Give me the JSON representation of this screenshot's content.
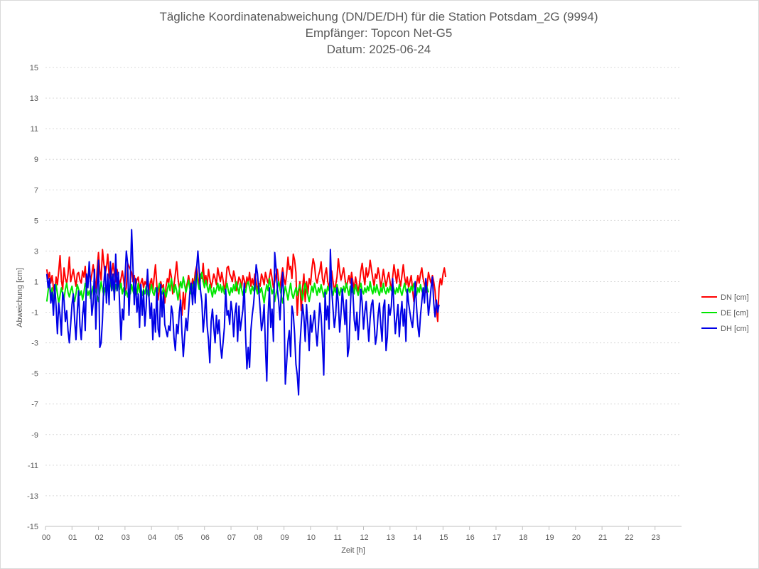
{
  "chart_data": {
    "type": "line",
    "title": "Tägliche Koordinatenabweichung (DN/DE/DH) für die Station Potsdam_2G (9994)",
    "subtitle_1": "Empfänger: Topcon Net-G5",
    "subtitle_2": "Datum: 2025-06-24",
    "xlabel": "Zeit [h]",
    "ylabel": "Abweichung [cm]",
    "xlim": [
      0,
      24
    ],
    "ylim": [
      -15,
      15
    ],
    "x_ticks": [
      "00",
      "01",
      "02",
      "03",
      "04",
      "05",
      "06",
      "07",
      "08",
      "09",
      "10",
      "11",
      "12",
      "13",
      "14",
      "15",
      "16",
      "17",
      "18",
      "19",
      "20",
      "21",
      "22",
      "23"
    ],
    "y_ticks": [
      15,
      13,
      11,
      9,
      7,
      5,
      3,
      1,
      -1,
      -3,
      -5,
      -7,
      -9,
      -11,
      -13,
      -15
    ],
    "grid": true,
    "legend_position": "right",
    "sampling_interval_h": 0.05,
    "series": [
      {
        "name": "DN [cm]",
        "color": "#ff0000",
        "values": [
          1.8,
          1.2,
          1.6,
          0.9,
          1.4,
          0.6,
          0.2,
          1.3,
          0.8,
          1.7,
          2.7,
          1.1,
          0.5,
          1.9,
          1.2,
          0.9,
          1.5,
          2.6,
          1.0,
          1.4,
          1.8,
          1.2,
          0.7,
          1.5,
          1.6,
          1.1,
          0.9,
          1.7,
          1.3,
          2.0,
          0.6,
          1.2,
          1.9,
          1.0,
          1.5,
          2.1,
          1.3,
          0.4,
          1.8,
          2.9,
          1.7,
          1.1,
          3.1,
          2.2,
          1.5,
          1.9,
          2.8,
          1.4,
          0.9,
          1.6,
          2.2,
          1.5,
          1.0,
          1.8,
          1.3,
          0.8,
          1.2,
          1.7,
          1.1,
          0.3,
          0.6,
          2.2,
          2.0,
          1.8,
          1.6,
          1.0,
          1.4,
          0.7,
          1.1,
          1.3,
          0.5,
          0.9,
          1.2,
          0.6,
          1.0,
          0.8,
          1.5,
          0.3,
          0.9,
          1.2,
          0.4,
          1.3,
          2.1,
          0.8,
          -0.2,
          0.5,
          1.0,
          0.6,
          0.8,
          -0.4,
          0.7,
          1.2,
          0.9,
          1.8,
          1.3,
          0.2,
          0.8,
          1.5,
          2.3,
          1.2,
          0.6,
          -0.5,
          -1.2,
          0.3,
          -0.8,
          0.5,
          0.9,
          1.4,
          0.8,
          0.3,
          1.2,
          0.7,
          1.6,
          2.0,
          1.3,
          0.8,
          1.5,
          1.2,
          2.2,
          0.9,
          1.4,
          0.7,
          1.8,
          1.2,
          0.6,
          1.0,
          1.5,
          1.2,
          0.8,
          1.9,
          1.4,
          1.0,
          1.6,
          1.1,
          0.5,
          0.8,
          1.9,
          2.0,
          1.5,
          1.3,
          1.0,
          1.7,
          1.3,
          0.4,
          0.8,
          1.3,
          1.1,
          0.6,
          1.4,
          1.1,
          0.6,
          1.3,
          0.9,
          1.6,
          0.7,
          1.2,
          0.8,
          1.5,
          1.0,
          0.4,
          0.9,
          0.7,
          1.5,
          1.2,
          0.8,
          1.6,
          1.2,
          0.9,
          1.3,
          1.8,
          1.2,
          0.6,
          1.0,
          1.5,
          1.8,
          1.0,
          0.6,
          1.3,
          1.9,
          1.2,
          0.8,
          1.5,
          2.6,
          1.8,
          2.0,
          1.2,
          2.8,
          2.4,
          1.6,
          -1.2,
          0.3,
          1.0,
          -0.9,
          0.6,
          1.5,
          -0.3,
          1.0,
          0.2,
          1.2,
          0.8,
          1.8,
          2.5,
          2.1,
          1.2,
          0.9,
          1.4,
          1.7,
          2.3,
          1.2,
          0.8,
          1.5,
          1.9,
          1.0,
          0.6,
          1.2,
          1.7,
          1.0,
          0.4,
          0.8,
          1.3,
          2.5,
          1.7,
          1.1,
          1.5,
          1.9,
          1.2,
          0.6,
          1.0,
          1.4,
          0.9,
          1.6,
          1.0,
          0.5,
          1.3,
          0.8,
          0.3,
          0.9,
          1.7,
          2.2,
          1.4,
          0.8,
          1.9,
          1.3,
          1.6,
          2.4,
          1.8,
          1.2,
          0.7,
          1.5,
          1.2,
          1.9,
          1.4,
          0.6,
          1.1,
          1.8,
          1.2,
          0.7,
          1.2,
          1.6,
          1.0,
          0.4,
          1.3,
          2.1,
          1.5,
          0.9,
          1.8,
          1.2,
          0.7,
          1.4,
          2.1,
          1.3,
          0.8,
          1.3,
          0.6,
          1.0,
          1.4,
          0.5,
          -0.3,
          0.3,
          0.8,
          1.4,
          0.9,
          1.5,
          1.9,
          1.2,
          0.8,
          0.3,
          0.7,
          1.6,
          1.2,
          0.9,
          1.4,
          1.0,
          0.4,
          -0.8,
          -1.6,
          0.6,
          1.2,
          0.8,
          1.5,
          1.9,
          1.3
        ],
        "x_start": 0.05
      },
      {
        "name": "DE [cm]",
        "color": "#00e600",
        "values": [
          -0.3,
          0.4,
          0.9,
          0.1,
          0.6,
          -0.2,
          0.3,
          0.8,
          0.2,
          -0.4,
          0.1,
          0.6,
          0.2,
          -0.1,
          0.5,
          0.9,
          0.3,
          0.0,
          0.4,
          0.7,
          0.1,
          -0.3,
          0.2,
          0.8,
          0.5,
          0.1,
          0.4,
          -0.2,
          0.3,
          0.9,
          0.6,
          0.1,
          0.4,
          -0.1,
          0.3,
          0.7,
          0.2,
          0.5,
          0.1,
          -0.3,
          0.4,
          1.0,
          0.5,
          0.1,
          0.6,
          0.2,
          0.7,
          0.3,
          0.8,
          1.3,
          0.6,
          0.2,
          0.8,
          0.4,
          1.1,
          0.5,
          0.9,
          0.2,
          0.6,
          0.1,
          0.4,
          0.0,
          0.5,
          0.2,
          0.8,
          0.4,
          0.1,
          0.6,
          0.2,
          0.9,
          0.3,
          0.6,
          0.1,
          0.5,
          0.2,
          0.7,
          0.3,
          0.0,
          0.4,
          0.8,
          0.3,
          0.1,
          0.6,
          0.2,
          0.5,
          0.9,
          0.4,
          0.2,
          0.6,
          0.3,
          0.0,
          0.5,
          0.9,
          0.4,
          1.2,
          0.7,
          0.3,
          0.8,
          0.4,
          -0.2,
          0.5,
          1.0,
          0.6,
          1.3,
          0.8,
          0.3,
          0.7,
          1.1,
          0.5,
          0.2,
          0.8,
          0.4,
          1.1,
          1.6,
          0.9,
          0.5,
          1.2,
          1.6,
          1.0,
          0.6,
          1.1,
          0.7,
          0.3,
          0.8,
          0.4,
          0.0,
          0.6,
          0.2,
          0.5,
          0.9,
          0.4,
          0.8,
          0.3,
          0.7,
          0.2,
          0.5,
          0.9,
          0.4,
          0.1,
          0.6,
          0.3,
          0.8,
          0.4,
          1.0,
          0.6,
          0.2,
          0.9,
          0.5,
          0.1,
          0.6,
          0.3,
          0.8,
          1.0,
          0.6,
          0.2,
          0.7,
          0.4,
          0.9,
          0.5,
          0.2,
          0.8,
          0.3,
          0.6,
          0.1,
          -0.4,
          0.3,
          0.8,
          0.4,
          1.2,
          0.7,
          0.2,
          0.5,
          -0.3,
          0.2,
          0.6,
          1.0,
          0.5,
          0.1,
          -0.4,
          0.2,
          0.7,
          0.3,
          -0.2,
          0.4,
          0.9,
          0.2,
          -0.1,
          0.3,
          0.6,
          0.1,
          0.5,
          0.8,
          0.3,
          -0.2,
          0.4,
          0.9,
          0.5,
          0.1,
          -0.3,
          0.2,
          0.7,
          0.3,
          0.9,
          0.5,
          0.1,
          0.6,
          0.3,
          0.8,
          0.4,
          0.0,
          0.5,
          0.2,
          0.7,
          0.4,
          0.9,
          0.5,
          0.1,
          0.6,
          0.3,
          0.8,
          0.4,
          0.1,
          0.6,
          0.2,
          0.7,
          0.3,
          0.9,
          0.5,
          0.1,
          0.7,
          0.3,
          0.6,
          0.2,
          0.8,
          0.4,
          0.1,
          0.5,
          0.9,
          0.4,
          0.2,
          0.6,
          0.3,
          0.7,
          0.4,
          1.0,
          0.5,
          0.2,
          0.7,
          0.3,
          0.8,
          0.4,
          0.1,
          0.6,
          0.3,
          0.9,
          0.4,
          0.2,
          0.6,
          0.3,
          0.7,
          0.4,
          0.8,
          0.5,
          0.2,
          0.6,
          0.3,
          0.8,
          0.4,
          0.1,
          0.5,
          0.9,
          0.4,
          0.2,
          0.6,
          0.3,
          0.7,
          0.4,
          0.9,
          0.5,
          0.1,
          0.6,
          0.3,
          0.8,
          0.4,
          0.2,
          0.5,
          0.9,
          0.6,
          0.3
        ],
        "x_start": 0.05
      },
      {
        "name": "DH [cm]",
        "color": "#0000e6",
        "values": [
          1.5,
          0.6,
          1.2,
          -0.4,
          0.3,
          -1.2,
          0.8,
          -0.6,
          -2.4,
          -0.4,
          -1.2,
          -2.5,
          0.3,
          -0.2,
          -1.6,
          -0.9,
          -2.2,
          -3.0,
          -1.8,
          -0.5,
          0.2,
          -1.5,
          -2.8,
          -1.0,
          0.4,
          -1.9,
          -2.8,
          -1.2,
          -0.3,
          -2.2,
          1.5,
          0.6,
          2.3,
          0.8,
          -1.2,
          -0.4,
          1.8,
          -2.1,
          0.6,
          2.4,
          -3.3,
          -3.0,
          -1.5,
          0.8,
          2.0,
          -0.4,
          1.5,
          -0.5,
          2.3,
          0.4,
          1.5,
          -0.2,
          2.8,
          0.4,
          1.6,
          -0.6,
          -2.8,
          -0.8,
          -1.5,
          1.2,
          3.0,
          2.2,
          -1.2,
          1.0,
          4.4,
          2.0,
          -0.5,
          1.2,
          -1.0,
          0.2,
          -2.0,
          0.8,
          -1.2,
          0.4,
          -1.9,
          -0.6,
          1.8,
          0.2,
          -1.4,
          -0.4,
          -2.8,
          -0.8,
          -2.3,
          0.6,
          -2.1,
          -2.6,
          0.8,
          -1.3,
          0.3,
          -1.8,
          -2.2,
          -2.6,
          -1.9,
          -2.2,
          -0.6,
          -1.1,
          -2.7,
          -3.5,
          -1.8,
          -2.4,
          -1.0,
          -0.2,
          -2.4,
          -3.9,
          -2.6,
          -1.4,
          -2.2,
          -0.9,
          0.4,
          0.9,
          -0.5,
          1.0,
          -0.4,
          1.8,
          3.0,
          1.7,
          0.4,
          -0.3,
          -2.3,
          -1.2,
          0.2,
          -1.9,
          -2.8,
          -4.3,
          -1.6,
          -0.8,
          -2.0,
          -3.0,
          -1.2,
          -2.4,
          -1.5,
          -3.1,
          -4.0,
          -3.0,
          -2.0,
          0.5,
          -1.2,
          -0.9,
          -1.8,
          -0.3,
          -1.0,
          -2.6,
          -1.1,
          -0.4,
          -2.9,
          -0.6,
          -2.2,
          -1.5,
          -0.8,
          0.9,
          -2.5,
          -4.7,
          -3.3,
          -4.6,
          -2.2,
          -1.2,
          -0.5,
          0.6,
          2.1,
          1.5,
          0.4,
          -0.8,
          -2.2,
          -1.6,
          -0.5,
          -3.3,
          -5.5,
          -1.2,
          0.6,
          -2.0,
          -0.8,
          -2.9,
          2.9,
          1.9,
          0.5,
          -0.3,
          -1.5,
          0.4,
          1.6,
          -0.8,
          -5.7,
          -4.3,
          -2.9,
          -2.2,
          -3.9,
          -0.6,
          -1.1,
          -2.4,
          -4.4,
          -5.1,
          -6.4,
          -3.2,
          -1.8,
          -0.5,
          -1.3,
          -2.9,
          -0.5,
          -1.8,
          -3.5,
          -1.2,
          -2.3,
          -1.6,
          -0.9,
          -2.2,
          -3.2,
          -1.9,
          -0.4,
          -1.2,
          -3.0,
          -5.1,
          0.3,
          -1.5,
          -0.6,
          -2.1,
          3.1,
          0.5,
          -0.8,
          -2.0,
          -1.2,
          0.6,
          -0.4,
          -2.3,
          -1.1,
          0.5,
          -0.6,
          -1.8,
          -0.2,
          -3.9,
          -3.3,
          -0.9,
          1.2,
          0.3,
          -1.5,
          -2.2,
          -1.0,
          -2.8,
          -1.4,
          0.5,
          -0.4,
          -2.1,
          -1.0,
          -0.3,
          -1.6,
          -2.9,
          -1.4,
          -0.5,
          -0.2,
          -1.6,
          -3.1,
          -2.5,
          -1.2,
          -0.4,
          -1.8,
          -2.9,
          -0.7,
          -0.2,
          -3.5,
          -2.6,
          -0.5,
          -1.2,
          -0.6,
          1.2,
          -0.8,
          -2.4,
          -1.4,
          -0.5,
          -2.6,
          -1.2,
          -0.3,
          -1.9,
          -0.8,
          -2.9,
          0.5,
          -0.4,
          -1.0,
          -1.6,
          -2.0,
          -0.8,
          1.0,
          -0.6,
          -1.9,
          -2.6,
          -1.2,
          -0.3,
          0.6,
          -0.4,
          1.2,
          0.2,
          -1.2,
          -0.4,
          0.6,
          1.3,
          -0.4,
          -1.3,
          -0.2,
          -1.0,
          -0.5
        ],
        "x_start": 0.05
      }
    ]
  }
}
